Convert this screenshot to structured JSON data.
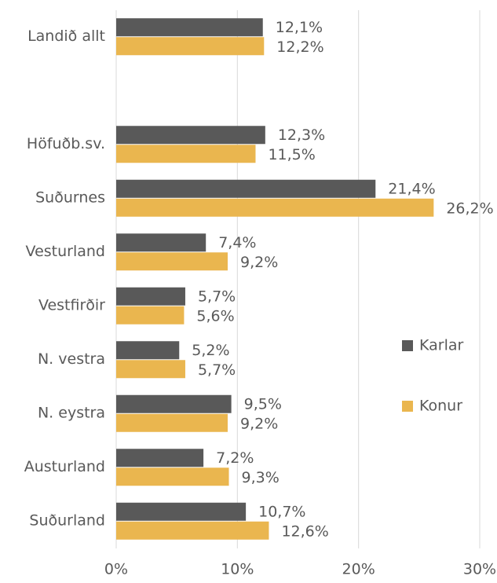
{
  "chart_data": {
    "type": "bar",
    "orientation": "horizontal",
    "categories": [
      "Landið allt",
      null,
      "Höfuðb.sv.",
      "Suðurnes",
      "Vesturland",
      "Vestfirðir",
      "N. vestra",
      "N. eystra",
      "Austurland",
      "Suðurland"
    ],
    "series": [
      {
        "name": "Karlar",
        "color": "#595959",
        "values": [
          12.1,
          null,
          12.3,
          21.4,
          7.4,
          5.7,
          5.2,
          9.5,
          7.2,
          10.7
        ],
        "value_labels": [
          "12,1%",
          null,
          "12,3%",
          "21,4%",
          "7,4%",
          "5,7%",
          "5,2%",
          "9,5%",
          "7,2%",
          "10,7%"
        ]
      },
      {
        "name": "Konur",
        "color": "#eab64f",
        "values": [
          12.2,
          null,
          11.5,
          26.2,
          9.2,
          5.6,
          5.7,
          9.2,
          9.3,
          12.6
        ],
        "value_labels": [
          "12,2%",
          null,
          "11,5%",
          "26,2%",
          "9,2%",
          "5,6%",
          "5,7%",
          "9,2%",
          "9,3%",
          "12,6%"
        ]
      }
    ],
    "xlim": [
      0,
      30
    ],
    "xticks": [
      {
        "value": 0,
        "label": "0%"
      },
      {
        "value": 10,
        "label": "10%"
      },
      {
        "value": 20,
        "label": "20%"
      },
      {
        "value": 30,
        "label": "30%"
      }
    ],
    "grid": true,
    "legend": "right"
  }
}
